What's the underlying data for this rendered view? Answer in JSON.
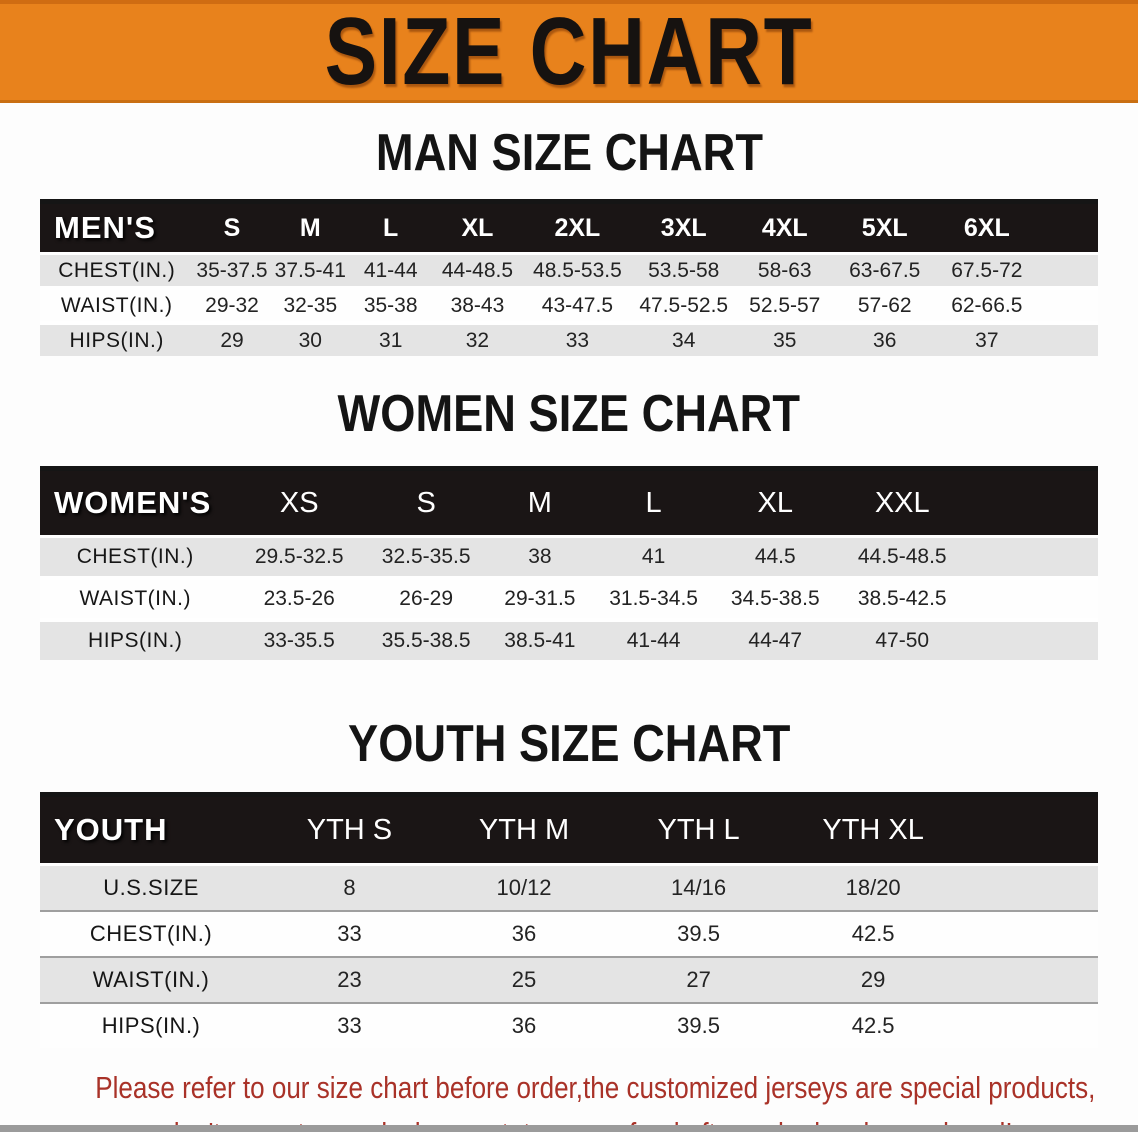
{
  "banner": {
    "title": "SIZE CHART"
  },
  "sections": [
    {
      "id": "men",
      "heading": "MAN SIZE CHART",
      "corner": "MEN'S",
      "columns": [
        "S",
        "M",
        "L",
        "XL",
        "2XL",
        "3XL",
        "4XL",
        "5XL",
        "6XL"
      ],
      "rows": [
        {
          "label": "CHEST(IN.)",
          "values": [
            "35-37.5",
            "37.5-41",
            "41-44",
            "44-48.5",
            "48.5-53.5",
            "53.5-58",
            "58-63",
            "63-67.5",
            "67.5-72"
          ]
        },
        {
          "label": "WAIST(IN.)",
          "values": [
            "29-32",
            "32-35",
            "35-38",
            "38-43",
            "43-47.5",
            "47.5-52.5",
            "52.5-57",
            "57-62",
            "62-66.5"
          ]
        },
        {
          "label": "HIPS(IN.)",
          "values": [
            "29",
            "30",
            "31",
            "32",
            "33",
            "34",
            "35",
            "36",
            "37"
          ]
        }
      ]
    },
    {
      "id": "women",
      "heading": "WOMEN SIZE CHART",
      "corner": "WOMEN'S",
      "columns": [
        "XS",
        "S",
        "M",
        "L",
        "XL",
        "XXL"
      ],
      "rows": [
        {
          "label": "CHEST(IN.)",
          "values": [
            "29.5-32.5",
            "32.5-35.5",
            "38",
            "41",
            "44.5",
            "44.5-48.5"
          ]
        },
        {
          "label": "WAIST(IN.)",
          "values": [
            "23.5-26",
            "26-29",
            "29-31.5",
            "31.5-34.5",
            "34.5-38.5",
            "38.5-42.5"
          ]
        },
        {
          "label": "HIPS(IN.)",
          "values": [
            "33-35.5",
            "35.5-38.5",
            "38.5-41",
            "41-44",
            "44-47",
            "47-50"
          ]
        }
      ]
    },
    {
      "id": "youth",
      "heading": "YOUTH SIZE CHART",
      "corner": "YOUTH",
      "columns": [
        "YTH S",
        "YTH M",
        "YTH L",
        "YTH XL"
      ],
      "rows": [
        {
          "label": "U.S.SIZE",
          "values": [
            "8",
            "10/12",
            "14/16",
            "18/20"
          ]
        },
        {
          "label": "CHEST(IN.)",
          "values": [
            "33",
            "36",
            "39.5",
            "42.5"
          ]
        },
        {
          "label": "WAIST(IN.)",
          "values": [
            "23",
            "25",
            "27",
            "29"
          ]
        },
        {
          "label": "HIPS(IN.)",
          "values": [
            "33",
            "36",
            "39.5",
            "42.5"
          ]
        }
      ]
    }
  ],
  "disclaimer": {
    "line1": "Please refer to our size chart before order,the customized jerseys are special products,",
    "line2": "we don't accept cancel, change, teturn or refund after order has been placed!"
  },
  "colors": {
    "banner-bg": "#E8821C",
    "header-bg": "#1A1515",
    "stripe": "#E4E4E4",
    "disclaimer-red": "#A93228",
    "bottom-bar": "#9B9B9B"
  }
}
